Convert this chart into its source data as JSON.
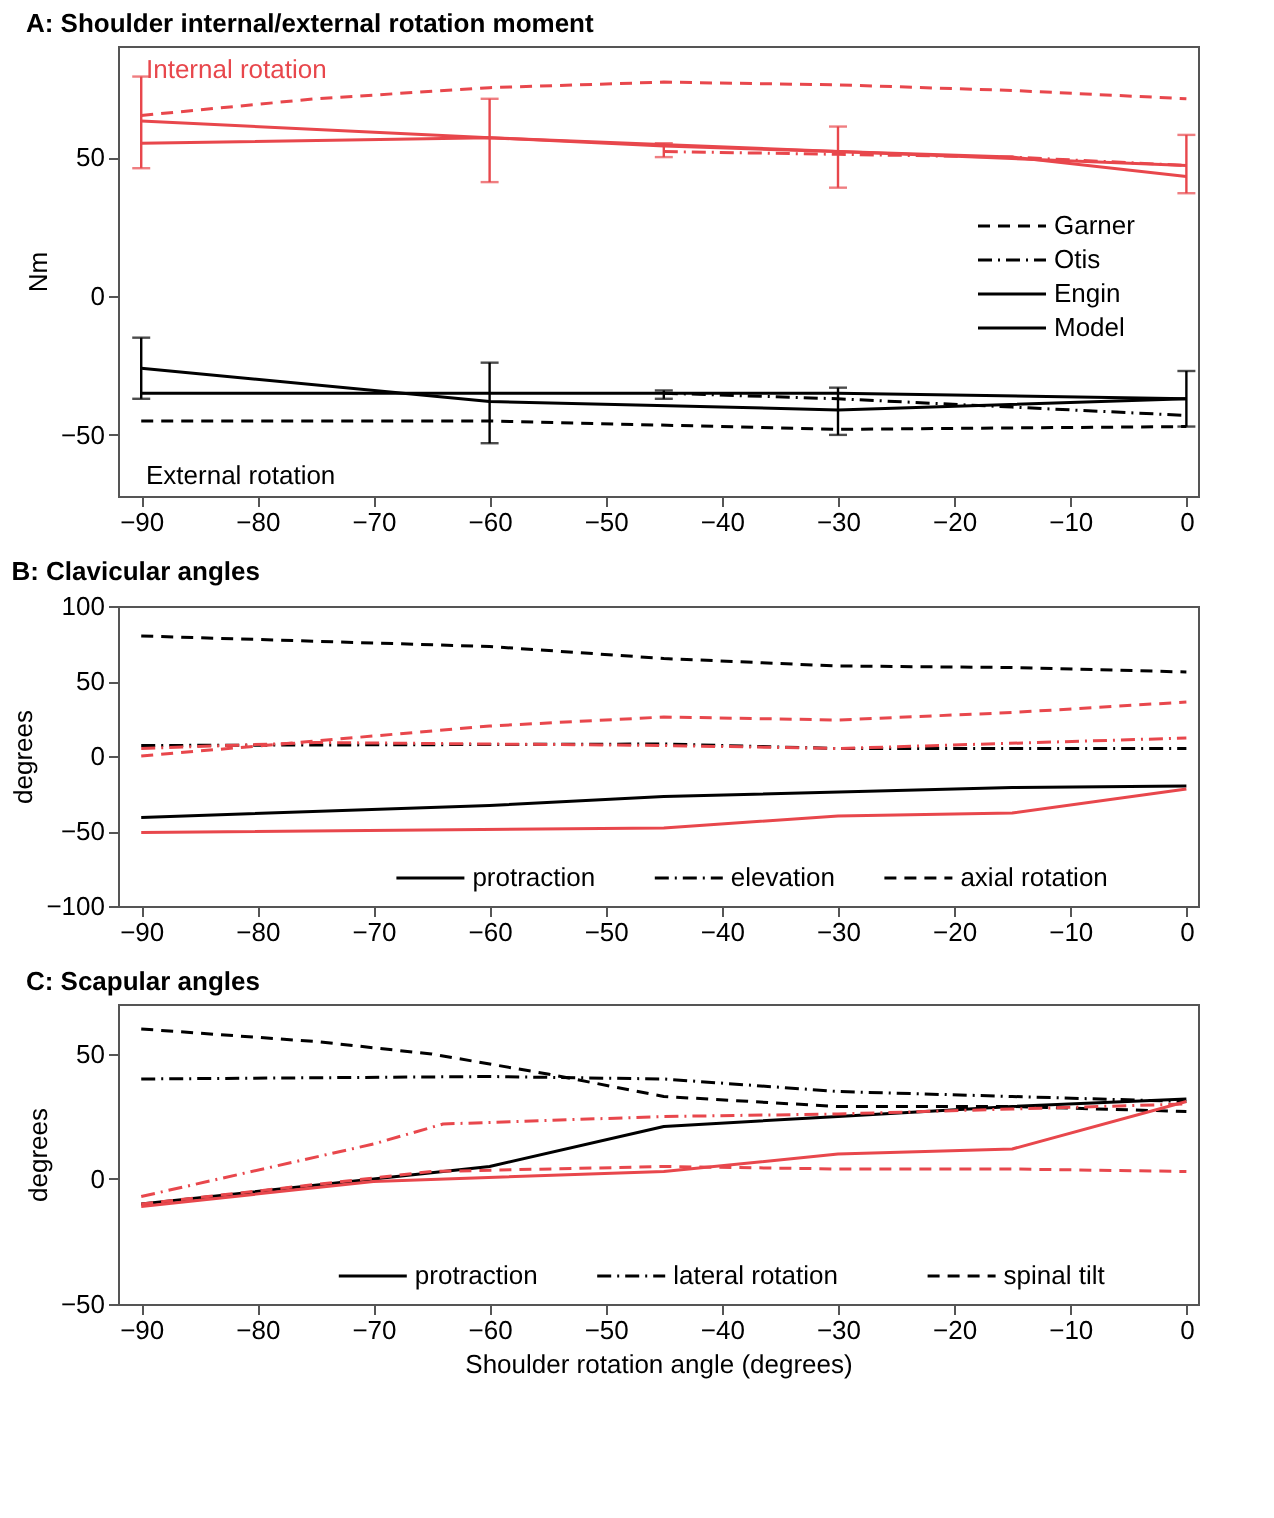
{
  "chart_data": [
    {
      "type": "line",
      "title": "A: Shoulder internal/external rotation moment",
      "ylabel": "Nm",
      "xlim": [
        -92,
        1
      ],
      "xticks": [
        -90,
        -80,
        -70,
        -60,
        -50,
        -40,
        -30,
        -20,
        -10,
        0
      ],
      "ylim": [
        -72,
        90
      ],
      "yticks": [
        -50,
        0,
        50
      ],
      "grid": false,
      "legend": "right",
      "annotations": [
        "Internal rotation",
        "External rotation"
      ],
      "series": [
        {
          "color": "#e8474c",
          "line_style": "dashed",
          "x": [
            -90,
            -75,
            -60,
            -45,
            -30,
            -15,
            0
          ],
          "values": [
            65,
            71,
            75,
            77,
            76,
            74,
            71
          ]
        },
        {
          "color": "#e8474c",
          "line_style": "dashdot",
          "x": [
            -45,
            -30,
            -15,
            0
          ],
          "values": [
            52,
            51,
            50,
            47
          ],
          "errors": [
            [
              50,
              55
            ],
            null,
            null,
            null
          ]
        },
        {
          "color": "#e8474c",
          "line_style": "solid",
          "x": [
            -90,
            -60,
            -30,
            -15,
            0
          ],
          "values": [
            63,
            57,
            52,
            50,
            43
          ]
        },
        {
          "color": "#e8474c",
          "line_style": "solid",
          "x": [
            -90,
            -60,
            -45,
            -30,
            0
          ],
          "values": [
            55,
            57,
            54,
            52,
            47
          ],
          "errors": [
            [
              46,
              79
            ],
            [
              41,
              71
            ],
            null,
            [
              39,
              61
            ],
            [
              37,
              58
            ]
          ]
        },
        {
          "name": "Garner",
          "color": "#000000",
          "line_style": "dashed",
          "x": [
            -90,
            -60,
            -30,
            0
          ],
          "values": [
            -45,
            -45,
            -48,
            -47
          ]
        },
        {
          "name": "Otis",
          "color": "#000000",
          "line_style": "dashdot",
          "x": [
            -45,
            -30,
            -15,
            0
          ],
          "values": [
            -35,
            -37,
            -40,
            -43
          ],
          "errors": [
            [
              -37,
              -34
            ],
            null,
            null,
            null
          ]
        },
        {
          "name": "Engin",
          "color": "#000000",
          "line_style": "solid",
          "x": [
            -90,
            -60,
            -30,
            0
          ],
          "values": [
            -26,
            -38,
            -41,
            -37
          ]
        },
        {
          "name": "Model",
          "color": "#000000",
          "line_style": "solid",
          "x": [
            -90,
            -60,
            -30,
            0
          ],
          "values": [
            -35,
            -35,
            -35,
            -37
          ],
          "errors": [
            [
              -37,
              -15
            ],
            [
              -53,
              -24
            ],
            [
              -50,
              -33
            ],
            [
              -47,
              -27
            ]
          ]
        }
      ]
    },
    {
      "type": "line",
      "title": "B: Clavicular angles",
      "ylabel": "degrees",
      "xlim": [
        -92,
        1
      ],
      "xticks": [
        -90,
        -80,
        -70,
        -60,
        -50,
        -40,
        -30,
        -20,
        -10,
        0
      ],
      "ylim": [
        -100,
        100
      ],
      "yticks": [
        -100,
        -50,
        0,
        50,
        100
      ],
      "grid": false,
      "legend": "bottom right",
      "series": [
        {
          "name": "protraction",
          "color": "#000000",
          "line_style": "solid",
          "x": [
            -90,
            -60,
            -45,
            -15,
            0
          ],
          "values": [
            -41,
            -33,
            -27,
            -21,
            -20
          ]
        },
        {
          "name": "elevation",
          "color": "#000000",
          "line_style": "dashdot",
          "x": [
            -90,
            -45,
            -30,
            0
          ],
          "values": [
            7,
            8,
            5,
            5
          ]
        },
        {
          "name": "axial rotation",
          "color": "#000000",
          "line_style": "dashed",
          "x": [
            -90,
            -60,
            -45,
            -30,
            -15,
            0
          ],
          "values": [
            80,
            73,
            65,
            60,
            59,
            56
          ]
        },
        {
          "color": "#e8474c",
          "line_style": "solid",
          "x": [
            -90,
            -45,
            -30,
            -15,
            0
          ],
          "values": [
            -51,
            -48,
            -40,
            -38,
            -22
          ]
        },
        {
          "color": "#e8474c",
          "line_style": "dashdot",
          "x": [
            -90,
            -75,
            -45,
            -30,
            0
          ],
          "values": [
            5,
            9,
            7,
            5,
            12
          ]
        },
        {
          "color": "#e8474c",
          "line_style": "dashed",
          "x": [
            -90,
            -60,
            -45,
            -30,
            -15,
            0
          ],
          "values": [
            0,
            20,
            26,
            24,
            29,
            36
          ]
        }
      ]
    },
    {
      "type": "line",
      "title": "C: Scapular angles",
      "xlabel": "Shoulder rotation angle (degrees)",
      "ylabel": "degrees",
      "xlim": [
        -92,
        1
      ],
      "xticks": [
        -90,
        -80,
        -70,
        -60,
        -50,
        -40,
        -30,
        -20,
        -10,
        0
      ],
      "ylim": [
        -50,
        70
      ],
      "yticks": [
        -50,
        0,
        50
      ],
      "grid": false,
      "legend": "bottom right",
      "series": [
        {
          "name": "protraction",
          "color": "#000000",
          "line_style": "solid",
          "x": [
            -90,
            -70,
            -60,
            -45,
            -30,
            -15,
            0
          ],
          "values": [
            -10,
            0,
            5,
            21,
            25,
            29,
            32
          ]
        },
        {
          "name": "lateral rotation",
          "color": "#000000",
          "line_style": "dashdot",
          "x": [
            -90,
            -60,
            -45,
            -30,
            -15,
            0
          ],
          "values": [
            40,
            41,
            40,
            35,
            33,
            31
          ]
        },
        {
          "name": "spinal tilt",
          "color": "#000000",
          "line_style": "dashed",
          "x": [
            -90,
            -75,
            -65,
            -55,
            -45,
            -30,
            -15,
            0
          ],
          "values": [
            60,
            55,
            50,
            42,
            33,
            29,
            29,
            27
          ]
        },
        {
          "color": "#e8474c",
          "line_style": "solid",
          "x": [
            -90,
            -70,
            -45,
            -30,
            -15,
            0
          ],
          "values": [
            -11,
            -1,
            3,
            10,
            12,
            31
          ]
        },
        {
          "color": "#e8474c",
          "line_style": "dashdot",
          "x": [
            -90,
            -70,
            -64,
            -45,
            -30,
            -15,
            0
          ],
          "values": [
            -7,
            14,
            22,
            25,
            26,
            28,
            30
          ]
        },
        {
          "color": "#e8474c",
          "line_style": "dashed",
          "x": [
            -90,
            -65,
            -45,
            -30,
            -15,
            0
          ],
          "values": [
            -10,
            3,
            5,
            4,
            4,
            3
          ]
        }
      ]
    }
  ]
}
